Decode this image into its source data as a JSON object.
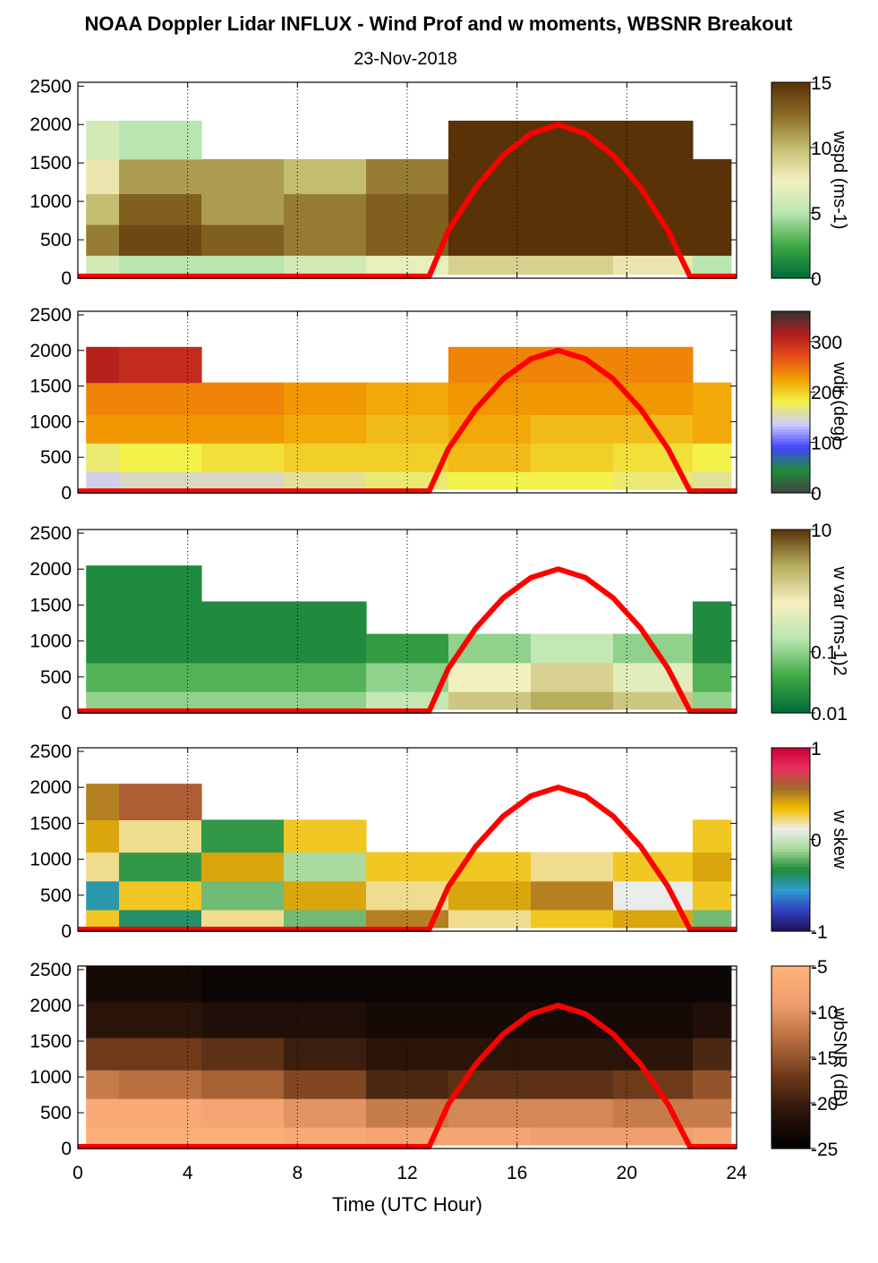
{
  "title": "NOAA Doppler Lidar INFLUX - Wind Prof and w moments, WBSNR Breakout",
  "date": "23-Nov-2018",
  "colors": {
    "sun_curve": "#ff0000",
    "wspd": [
      "#006b38",
      "#3fa845",
      "#b9e6b0",
      "#f5f0c0",
      "#c2bd6f",
      "#8a6a25",
      "#5a3208"
    ],
    "wdir": [
      "#444444",
      "#1e8c3a",
      "#4444ff",
      "#ccccff",
      "#f2f24a",
      "#f2a000",
      "#e84c1c",
      "#b01c1c",
      "#333333"
    ],
    "wvar": [
      "#006b38",
      "#3fa845",
      "#b9e6b0",
      "#f5f0c0",
      "#b7ae5e",
      "#5a3208"
    ],
    "wskew": [
      "#20105a",
      "#3040c0",
      "#2f9ad0",
      "#1e8c3a",
      "#a6d99a",
      "#eeeeee",
      "#f2c000",
      "#a06a2c",
      "#e8305a",
      "#c8003a"
    ],
    "wbsnr": [
      "#000000",
      "#2a140a",
      "#6e3a1a",
      "#b86e3e",
      "#f0a070",
      "#ffb27a"
    ]
  },
  "chart_data": [
    {
      "type": "heatmap",
      "name": "wspd",
      "x": [
        0,
        3,
        6,
        9,
        12,
        15,
        18,
        21,
        23.8
      ],
      "y": [
        100,
        500,
        900,
        1300,
        1800
      ],
      "z": [
        [
          6,
          5,
          5,
          6,
          7,
          9,
          9,
          8,
          5
        ],
        [
          12,
          14,
          13,
          12,
          13,
          15,
          15,
          15,
          15
        ],
        [
          10,
          13,
          11,
          12,
          13,
          15,
          15,
          15,
          15
        ],
        [
          8,
          11,
          11,
          10,
          12,
          15,
          15,
          15,
          15
        ],
        [
          6,
          5,
          null,
          null,
          null,
          15,
          15,
          15,
          null
        ]
      ],
      "colorbar": {
        "label": "wspd (ms-1)",
        "ticks": [
          "15",
          "10",
          "5",
          "0"
        ],
        "range": [
          0,
          15
        ]
      },
      "yticks": [
        "0",
        "500",
        "1000",
        "1500",
        "2000",
        "2500"
      ],
      "xlim": [
        0,
        24
      ],
      "ylim": [
        0,
        2550
      ]
    },
    {
      "type": "heatmap",
      "name": "wdir",
      "x": [
        0,
        3,
        6,
        9,
        12,
        15,
        18,
        21,
        23.8
      ],
      "y": [
        100,
        500,
        900,
        1300,
        1800
      ],
      "z": [
        [
          140,
          150,
          150,
          160,
          170,
          180,
          180,
          170,
          160
        ],
        [
          170,
          180,
          190,
          200,
          200,
          210,
          200,
          190,
          180
        ],
        [
          230,
          230,
          230,
          220,
          210,
          220,
          210,
          210,
          220
        ],
        [
          240,
          240,
          240,
          230,
          220,
          230,
          230,
          230,
          220
        ],
        [
          310,
          300,
          null,
          null,
          null,
          240,
          240,
          240,
          null
        ]
      ],
      "colorbar": {
        "label": "wdir (deg)",
        "ticks": [
          "300",
          "200",
          "100",
          "0"
        ],
        "range": [
          0,
          360
        ]
      },
      "yticks": [
        "0",
        "500",
        "1000",
        "1500",
        "2000",
        "2500"
      ],
      "xlim": [
        0,
        24
      ],
      "ylim": [
        0,
        2550
      ]
    },
    {
      "type": "heatmap",
      "name": "w var",
      "x": [
        0,
        3,
        6,
        9,
        12,
        15,
        18,
        21,
        23.8
      ],
      "y": [
        100,
        500,
        900,
        1300,
        1800
      ],
      "z": [
        [
          0.1,
          0.1,
          0.1,
          0.1,
          0.2,
          1.5,
          2.5,
          1.5,
          0.1
        ],
        [
          0.05,
          0.05,
          0.05,
          0.05,
          0.1,
          0.6,
          1.2,
          0.4,
          0.05
        ],
        [
          0.02,
          0.02,
          0.02,
          0.02,
          0.03,
          0.1,
          0.2,
          0.1,
          0.02
        ],
        [
          0.02,
          0.02,
          0.02,
          0.02,
          null,
          null,
          null,
          null,
          0.02
        ],
        [
          0.02,
          0.02,
          null,
          null,
          null,
          null,
          null,
          null,
          null
        ]
      ],
      "colorbar": {
        "label": "w var (ms-1)2",
        "ticks": [
          "10",
          "0.1",
          "0.01"
        ],
        "range": [
          0.01,
          10
        ],
        "scale": "log"
      },
      "yticks": [
        "0",
        "500",
        "1000",
        "1500",
        "2000",
        "2500"
      ],
      "xlim": [
        0,
        24
      ],
      "ylim": [
        0,
        2550
      ]
    },
    {
      "type": "heatmap",
      "name": "w skew",
      "x": [
        0,
        3,
        6,
        9,
        12,
        15,
        18,
        21,
        23.8
      ],
      "y": [
        100,
        500,
        900,
        1300,
        1800
      ],
      "z": [
        [
          0.3,
          -0.4,
          0.2,
          -0.2,
          0.5,
          0.2,
          0.3,
          0.4,
          -0.2
        ],
        [
          -0.5,
          0.3,
          -0.2,
          0.4,
          0.2,
          0.4,
          0.5,
          0.1,
          0.3
        ],
        [
          0.2,
          -0.3,
          0.4,
          -0.1,
          0.3,
          0.3,
          0.2,
          0.3,
          0.4
        ],
        [
          0.4,
          0.2,
          -0.3,
          0.3,
          null,
          null,
          null,
          null,
          0.3
        ],
        [
          0.5,
          0.6,
          null,
          null,
          null,
          null,
          null,
          null,
          null
        ]
      ],
      "colorbar": {
        "label": "w skew",
        "ticks": [
          "1",
          "0",
          "-1"
        ],
        "range": [
          -1,
          1
        ]
      },
      "yticks": [
        "0",
        "500",
        "1000",
        "1500",
        "2000",
        "2500"
      ],
      "xlim": [
        0,
        24
      ],
      "ylim": [
        0,
        2550
      ]
    },
    {
      "type": "heatmap",
      "name": "wbSNR",
      "x": [
        0,
        3,
        6,
        9,
        12,
        15,
        18,
        21,
        23.8
      ],
      "y": [
        100,
        500,
        900,
        1300,
        1800,
        2300
      ],
      "z": [
        [
          -6,
          -6,
          -6,
          -7,
          -8,
          -8,
          -9,
          -9,
          -8
        ],
        [
          -7,
          -7,
          -8,
          -10,
          -12,
          -11,
          -11,
          -12,
          -12
        ],
        [
          -12,
          -13,
          -14,
          -16,
          -19,
          -18,
          -18,
          -17,
          -15
        ],
        [
          -17,
          -17,
          -18,
          -20,
          -21,
          -21,
          -21,
          -21,
          -19
        ],
        [
          -21,
          -21,
          -22,
          -22,
          -23,
          -23,
          -23,
          -23,
          -22
        ],
        [
          -23,
          -23,
          -24,
          -24,
          -24,
          -24,
          -24,
          -24,
          -24
        ]
      ],
      "colorbar": {
        "label": "wbSNR (dB)",
        "ticks": [
          "-5",
          "-10",
          "-15",
          "-20",
          "-25"
        ],
        "range": [
          -25,
          -5
        ]
      },
      "yticks": [
        "0",
        "500",
        "1000",
        "1500",
        "2000",
        "2500"
      ],
      "xlim": [
        0,
        24
      ],
      "ylim": [
        0,
        2550
      ]
    }
  ],
  "sun_curve": {
    "x": [
      0,
      12.8,
      13.5,
      14.5,
      15.5,
      16.5,
      17.5,
      18.5,
      19.5,
      20.5,
      21.5,
      22.3,
      24
    ],
    "y": [
      0,
      0,
      620,
      1180,
      1600,
      1880,
      2000,
      1880,
      1600,
      1180,
      620,
      0,
      0
    ]
  },
  "xaxis": {
    "label": "Time (UTC Hour)",
    "ticks": [
      "0",
      "4",
      "8",
      "12",
      "16",
      "20",
      "24"
    ],
    "tick_values": [
      0,
      4,
      8,
      12,
      16,
      20,
      24
    ]
  }
}
